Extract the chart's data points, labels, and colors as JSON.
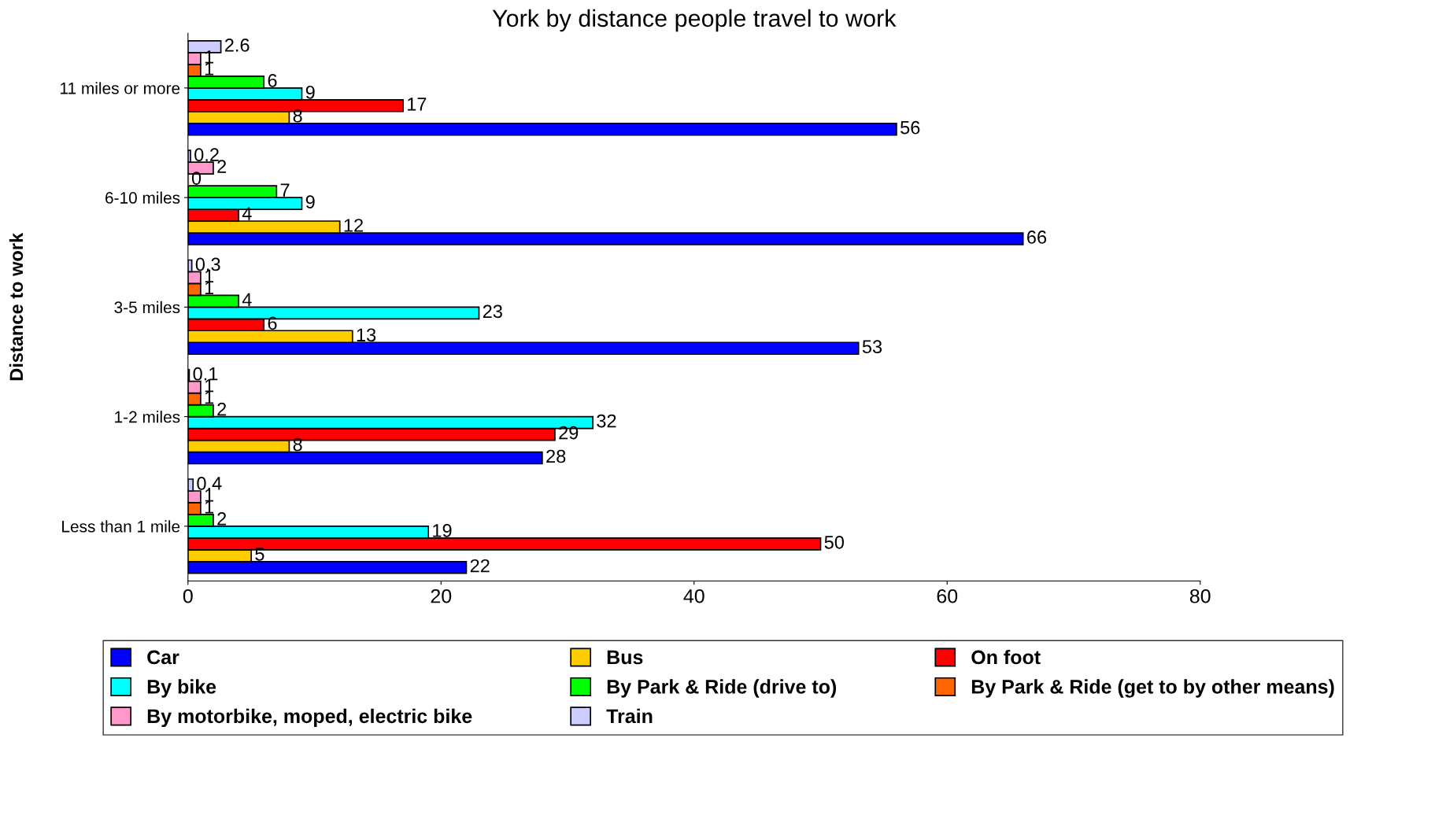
{
  "chart_data": {
    "type": "bar",
    "orientation": "horizontal",
    "title": "York by distance people travel to work",
    "ylabel": "Distance to work",
    "categories": [
      "11 miles or more",
      "6-10 miles",
      "3-5 miles",
      "1-2 miles",
      "Less than 1 mile"
    ],
    "series": [
      {
        "name": "Car",
        "color": "#0000ff",
        "values": [
          56,
          66,
          53,
          28,
          22
        ]
      },
      {
        "name": "Bus",
        "color": "#ffcc00",
        "values": [
          8,
          12,
          13,
          8,
          5
        ]
      },
      {
        "name": "On foot",
        "color": "#ff0000",
        "values": [
          17,
          4,
          6,
          29,
          50
        ]
      },
      {
        "name": "By bike",
        "color": "#00ffff",
        "values": [
          9,
          9,
          23,
          32,
          19
        ]
      },
      {
        "name": "By Park & Ride (drive to)",
        "color": "#00ff00",
        "values": [
          6,
          7,
          4,
          2,
          2
        ]
      },
      {
        "name": "By Park & Ride (get to by other means)",
        "color": "#ff6600",
        "values": [
          1,
          0,
          1,
          1,
          1
        ]
      },
      {
        "name": "By motorbike, moped, electric bike",
        "color": "#ff99cc",
        "values": [
          1,
          2,
          1,
          1,
          1
        ]
      },
      {
        "name": "Train",
        "color": "#ccccff",
        "values": [
          2.6,
          0.2,
          0.3,
          0.1,
          0.4
        ]
      }
    ],
    "xlim": [
      0,
      80
    ],
    "xticks": [
      0,
      20,
      40,
      60,
      80
    ],
    "data_labels": true,
    "grid": false,
    "legend": "bottom"
  }
}
